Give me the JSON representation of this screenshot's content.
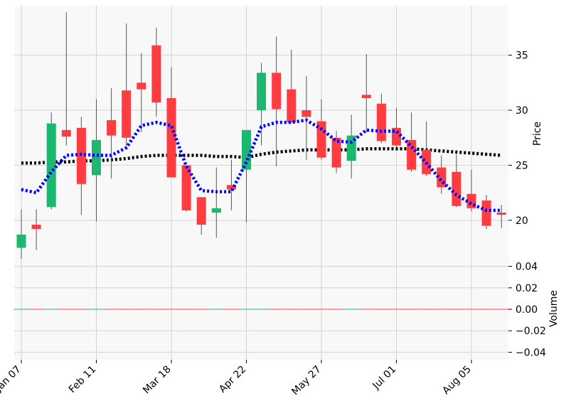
{
  "chart_data": {
    "type": "candlestick",
    "grid": true,
    "legend": "none",
    "colors": {
      "up": "#1db86f",
      "down": "#ff3c3f",
      "wick": "#555555",
      "ma_short": "#0000ff",
      "ma_long": "#000000",
      "panel_bg": "#f8f8f8",
      "grid": "#d3d3d3"
    },
    "price_panel": {
      "ylabel": "Price",
      "ylim": [
        16.5,
        39.5
      ],
      "yticks": [
        "20",
        "25",
        "30",
        "35"
      ]
    },
    "volume_panel": {
      "ylabel": "Volume",
      "ylim": [
        -0.047,
        0.047
      ],
      "yticks": [
        "−0.04",
        "−0.02",
        "0.00",
        "0.02",
        "0.04"
      ],
      "values": "all 0"
    },
    "x_tick_labels": [
      "Jan 07",
      "Feb 11",
      "Mar 18",
      "Apr 22",
      "May 27",
      "Jul 01",
      "Aug 05"
    ],
    "x_tick_indices": [
      0,
      5,
      10,
      15,
      20,
      25,
      30
    ],
    "candles": [
      {
        "o": 17.5,
        "h": 21.0,
        "l": 16.3,
        "c": 18.7
      },
      {
        "o": 19.6,
        "h": 21.0,
        "l": 17.3,
        "c": 19.2
      },
      {
        "o": 21.2,
        "h": 29.8,
        "l": 21.0,
        "c": 28.8
      },
      {
        "o": 28.2,
        "h": 38.9,
        "l": 26.8,
        "c": 27.6
      },
      {
        "o": 28.4,
        "h": 29.4,
        "l": 20.5,
        "c": 23.3
      },
      {
        "o": 24.1,
        "h": 31.0,
        "l": 19.9,
        "c": 27.3
      },
      {
        "o": 29.1,
        "h": 32.0,
        "l": 23.8,
        "c": 27.7
      },
      {
        "o": 31.8,
        "h": 37.9,
        "l": 26.6,
        "c": 27.5
      },
      {
        "o": 32.5,
        "h": 35.2,
        "l": 28.0,
        "c": 31.9
      },
      {
        "o": 35.9,
        "h": 37.5,
        "l": 29.4,
        "c": 30.7
      },
      {
        "o": 31.1,
        "h": 33.9,
        "l": 23.9,
        "c": 23.9
      },
      {
        "o": 25.0,
        "h": 25.0,
        "l": 20.8,
        "c": 20.9
      },
      {
        "o": 22.1,
        "h": 22.1,
        "l": 18.7,
        "c": 19.6
      },
      {
        "o": 20.7,
        "h": 24.8,
        "l": 18.4,
        "c": 21.1
      },
      {
        "o": 23.2,
        "h": 25.5,
        "l": 20.9,
        "c": 22.8
      },
      {
        "o": 24.6,
        "h": 28.2,
        "l": 19.8,
        "c": 28.2
      },
      {
        "o": 30.0,
        "h": 34.3,
        "l": 26.8,
        "c": 33.4
      },
      {
        "o": 33.4,
        "h": 36.7,
        "l": 24.9,
        "c": 30.1
      },
      {
        "o": 31.9,
        "h": 35.5,
        "l": 28.8,
        "c": 28.9
      },
      {
        "o": 30.0,
        "h": 33.1,
        "l": 25.5,
        "c": 29.4
      },
      {
        "o": 29.0,
        "h": 31.0,
        "l": 25.5,
        "c": 25.7
      },
      {
        "o": 27.5,
        "h": 28.1,
        "l": 24.3,
        "c": 24.8
      },
      {
        "o": 25.4,
        "h": 29.6,
        "l": 23.8,
        "c": 27.7
      },
      {
        "o": 31.4,
        "h": 35.1,
        "l": 28.0,
        "c": 31.1
      },
      {
        "o": 30.6,
        "h": 31.5,
        "l": 27.0,
        "c": 27.2
      },
      {
        "o": 28.4,
        "h": 30.2,
        "l": 26.6,
        "c": 26.8
      },
      {
        "o": 27.3,
        "h": 29.8,
        "l": 24.4,
        "c": 24.6
      },
      {
        "o": 26.4,
        "h": 29.0,
        "l": 24.0,
        "c": 24.2
      },
      {
        "o": 24.8,
        "h": 25.9,
        "l": 22.4,
        "c": 23.0
      },
      {
        "o": 24.4,
        "h": 26.0,
        "l": 21.2,
        "c": 21.3
      },
      {
        "o": 22.4,
        "h": 24.6,
        "l": 20.8,
        "c": 21.1
      },
      {
        "o": 21.8,
        "h": 22.3,
        "l": 19.2,
        "c": 19.5
      },
      {
        "o": 20.7,
        "h": 21.4,
        "l": 19.3,
        "c": 20.5
      }
    ],
    "ma_short": [
      22.8,
      22.5,
      24.4,
      25.9,
      26.0,
      25.9,
      25.9,
      26.6,
      28.6,
      28.9,
      28.6,
      24.9,
      22.7,
      22.6,
      22.6,
      25.3,
      28.5,
      28.9,
      28.9,
      29.1,
      28.3,
      27.2,
      27.1,
      28.2,
      28.1,
      28.1,
      26.7,
      25.2,
      23.6,
      22.3,
      21.5,
      20.9,
      20.9
    ],
    "ma_long": [
      25.2,
      25.2,
      25.3,
      25.3,
      25.4,
      25.4,
      25.5,
      25.6,
      25.8,
      25.9,
      25.9,
      25.9,
      25.9,
      25.8,
      25.8,
      25.7,
      26.0,
      26.2,
      26.3,
      26.4,
      26.4,
      26.4,
      26.4,
      26.5,
      26.5,
      26.5,
      26.5,
      26.4,
      26.3,
      26.2,
      26.1,
      26.0,
      25.9
    ]
  }
}
